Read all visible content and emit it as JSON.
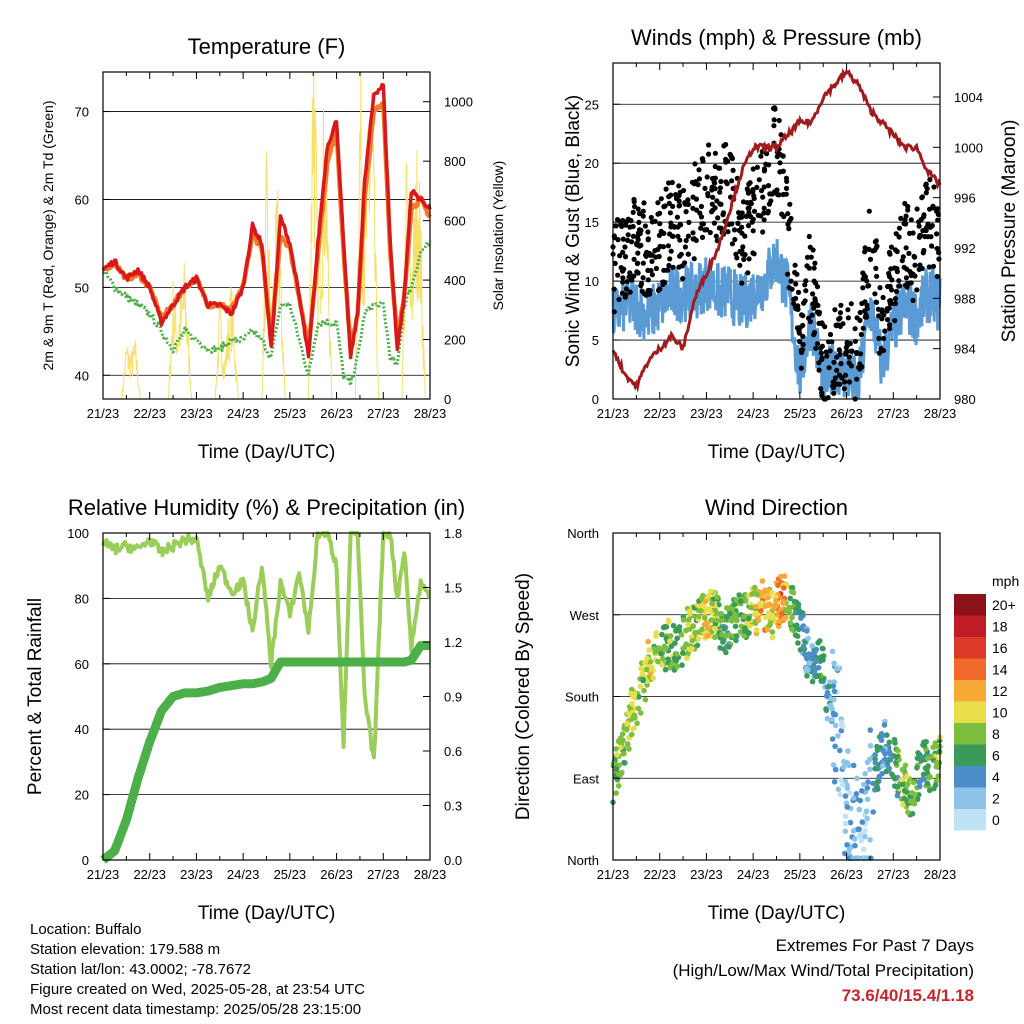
{
  "x_ticks": [
    "21/23",
    "22/23",
    "23/23",
    "24/23",
    "25/23",
    "26/23",
    "27/23",
    "28/23"
  ],
  "x_label": "Time (Day/UTC)",
  "colors": {
    "temp_2m": "#d7191c",
    "temp_9m": "#f07b28",
    "dewpoint": "#4daf4a",
    "insolation": "#f5e06a",
    "gust": "#000000",
    "sonic_wind": "#5b9bd5",
    "pressure": "#a01c1c",
    "rh": "#9acd5a",
    "precip": "#4daf4a"
  },
  "chart_data": [
    {
      "id": "temperature",
      "type": "line",
      "title": "Temperature (F)",
      "xlabel": "Time (Day/UTC)",
      "ylabel": "2m & 9m T (Red, Orange) & 2m Td (Green)",
      "ylabel_right": "Solar Insolation (Yellow)",
      "ylim": [
        37.3,
        74.5
      ],
      "yticks": [
        40,
        50,
        60,
        70
      ],
      "ylim_right": [
        0,
        1100
      ],
      "yticks_right": [
        0,
        200,
        400,
        600,
        800,
        1000
      ],
      "grid": true,
      "x": [
        0,
        0.25,
        0.5,
        0.75,
        1,
        1.25,
        1.5,
        1.75,
        2,
        2.25,
        2.5,
        2.75,
        3,
        3.2,
        3.4,
        3.6,
        3.8,
        4,
        4.2,
        4.4,
        4.6,
        4.8,
        5,
        5.15,
        5.3,
        5.45,
        5.6,
        5.8,
        6,
        6.15,
        6.3,
        6.45,
        6.6,
        6.8,
        7
      ],
      "series": [
        {
          "name": "2m T",
          "values": [
            52,
            53,
            51,
            52,
            50,
            46,
            48,
            50,
            51,
            48,
            48,
            47,
            50,
            57,
            55,
            43,
            58,
            55,
            49,
            42,
            55,
            66,
            69,
            55,
            42,
            47,
            62,
            72,
            73,
            55,
            43,
            49,
            61,
            60,
            59
          ]
        },
        {
          "name": "9m T",
          "values": [
            52,
            52.8,
            51,
            51.5,
            50,
            46.5,
            48,
            50,
            51,
            48,
            48,
            47.5,
            50,
            56,
            54.5,
            44,
            56,
            54.5,
            49,
            43,
            54,
            64,
            68,
            54,
            43,
            47,
            60,
            70,
            71,
            54,
            44,
            49,
            59,
            60,
            58
          ]
        },
        {
          "name": "2m Td",
          "values": [
            52,
            50,
            49,
            48,
            47,
            45,
            43,
            45,
            44,
            43,
            43,
            44,
            44,
            45,
            44,
            42,
            48,
            48,
            44,
            40,
            46,
            46,
            46,
            40,
            39,
            42,
            47,
            48,
            48,
            42,
            41,
            48,
            50,
            54,
            55
          ]
        },
        {
          "name": "Solar Insolation",
          "x": [
            0.4,
            0.5,
            0.6,
            0.7,
            0.8,
            1.4,
            1.5,
            1.6,
            1.75,
            1.9,
            2.4,
            2.5,
            2.6,
            2.75,
            2.9,
            3.4,
            3.5,
            3.6,
            3.75,
            3.9,
            4.4,
            4.5,
            4.6,
            4.75,
            4.9,
            5.4,
            5.5,
            5.6,
            5.75,
            5.9,
            6.4,
            6.5,
            6.6,
            6.75,
            6.9
          ],
          "values": [
            0,
            150,
            120,
            150,
            0,
            0,
            300,
            200,
            350,
            0,
            0,
            250,
            100,
            300,
            0,
            0,
            600,
            250,
            550,
            0,
            0,
            1100,
            400,
            800,
            0,
            0,
            900,
            500,
            900,
            0,
            0,
            650,
            350,
            700,
            0
          ]
        }
      ]
    },
    {
      "id": "winds",
      "type": "line",
      "title": "Winds (mph) & Pressure (mb)",
      "xlabel": "Time (Day/UTC)",
      "ylabel": "Sonic Wind & Gust (Blue, Black)",
      "ylabel_right": "Station Pressure (Maroon)",
      "ylim": [
        0,
        28.5
      ],
      "yticks": [
        0,
        5,
        10,
        15,
        20,
        25
      ],
      "ylim_right": [
        980,
        1006.7
      ],
      "yticks_right": [
        980,
        984,
        988,
        992,
        996,
        1000,
        1004
      ],
      "grid": true,
      "x": [
        0,
        0.25,
        0.5,
        0.75,
        1,
        1.25,
        1.5,
        1.75,
        2,
        2.25,
        2.5,
        2.75,
        3,
        3.25,
        3.5,
        3.75,
        4,
        4.25,
        4.5,
        4.75,
        5,
        5.25,
        5.5,
        5.75,
        6,
        6.25,
        6.5,
        6.75,
        7
      ],
      "series": [
        {
          "name": "Gust",
          "values": [
            11,
            12,
            14,
            12,
            13,
            15,
            14,
            16,
            18,
            17,
            18,
            13,
            16,
            18,
            22,
            14,
            5,
            11,
            2,
            4,
            5,
            3,
            14,
            6,
            10,
            13,
            12,
            15,
            14
          ]
        },
        {
          "name": "Sonic Wind",
          "values": [
            7,
            8,
            8,
            7,
            8,
            9,
            9,
            9,
            10,
            9,
            9,
            8,
            9,
            10,
            12,
            9,
            2,
            7,
            1,
            3,
            2,
            1,
            8,
            3,
            6,
            8,
            7,
            9,
            8
          ]
        },
        {
          "name": "Station Pressure",
          "values": [
            984,
            982,
            981,
            983,
            984,
            985,
            984,
            988,
            990,
            992,
            995,
            998,
            1000,
            1000,
            1000,
            1001,
            1002,
            1002,
            1004,
            1005,
            1006,
            1005,
            1003,
            1002,
            1001,
            1000,
            1000,
            998,
            997
          ]
        }
      ]
    },
    {
      "id": "humidity",
      "type": "line",
      "title": "Relative Humidity (%) & Precipitation (in)",
      "xlabel": "Time (Day/UTC)",
      "ylabel": "Percent & Total Rainfall",
      "ylim": [
        0,
        100
      ],
      "yticks": [
        0,
        20,
        40,
        60,
        80,
        100
      ],
      "yticks_right": [
        "0.0",
        "0.3",
        "0.6",
        "0.9",
        "1.2",
        "1.5",
        "1.8"
      ],
      "grid": true,
      "x": [
        0,
        0.25,
        0.5,
        0.75,
        1,
        1.25,
        1.5,
        1.75,
        2,
        2.25,
        2.5,
        2.75,
        3,
        3.2,
        3.4,
        3.6,
        3.8,
        4,
        4.2,
        4.4,
        4.6,
        4.8,
        5,
        5.15,
        5.3,
        5.45,
        5.6,
        5.8,
        6,
        6.15,
        6.3,
        6.45,
        6.6,
        6.8,
        7
      ],
      "series": [
        {
          "name": "Relative Humidity",
          "values": [
            97,
            95,
            96,
            95,
            98,
            94,
            96,
            98,
            98,
            80,
            90,
            82,
            85,
            70,
            90,
            60,
            85,
            75,
            88,
            70,
            100,
            100,
            90,
            35,
            100,
            100,
            50,
            30,
            100,
            100,
            80,
            95,
            65,
            85,
            80
          ]
        },
        {
          "name": "Total Precipitation",
          "values": [
            0,
            0.05,
            0.22,
            0.45,
            0.65,
            0.82,
            0.9,
            0.92,
            0.92,
            0.93,
            0.95,
            0.96,
            0.97,
            0.97,
            0.98,
            1.0,
            1.09,
            1.09,
            1.09,
            1.09,
            1.09,
            1.09,
            1.09,
            1.09,
            1.09,
            1.09,
            1.09,
            1.09,
            1.09,
            1.09,
            1.09,
            1.09,
            1.1,
            1.18,
            1.18
          ]
        }
      ]
    },
    {
      "id": "direction",
      "type": "scatter",
      "title": "Wind Direction",
      "xlabel": "Time (Day/UTC)",
      "ylabel": "Direction (Colored By Speed)",
      "yticks": [
        "North",
        "East",
        "South",
        "West",
        "North"
      ],
      "ylim": [
        0,
        360
      ],
      "colorbar": {
        "title": "mph",
        "labels": [
          "0",
          "2",
          "4",
          "6",
          "8",
          "10",
          "12",
          "14",
          "16",
          "18",
          "20+"
        ],
        "colors": [
          "#bfe3f5",
          "#8cc4ea",
          "#4b8ec9",
          "#3a9a5a",
          "#7cbf3f",
          "#e9de4a",
          "#f7a937",
          "#ef6a2c",
          "#dc3a26",
          "#bf1e26",
          "#8b1218"
        ]
      },
      "x": [
        0,
        0.2,
        0.4,
        0.6,
        0.8,
        1,
        1.2,
        1.4,
        1.6,
        1.8,
        2,
        2.2,
        2.4,
        2.6,
        2.8,
        3,
        3.2,
        3.4,
        3.6,
        3.8,
        4,
        4.2,
        4.4,
        4.6,
        4.8,
        5,
        5.2,
        5.4,
        5.6,
        5.8,
        6,
        6.2,
        6.4,
        6.6,
        6.8,
        7
      ],
      "values": [
        90,
        120,
        160,
        190,
        220,
        230,
        240,
        230,
        250,
        255,
        270,
        270,
        250,
        260,
        270,
        275,
        280,
        270,
        290,
        280,
        260,
        220,
        230,
        180,
        140,
        60,
        20,
        40,
        90,
        130,
        110,
        80,
        70,
        110,
        100,
        110
      ],
      "speeds": [
        7,
        8,
        9,
        8,
        10,
        7,
        8,
        6,
        9,
        8,
        11,
        8,
        6,
        8,
        7,
        9,
        12,
        10,
        14,
        7,
        5,
        3,
        6,
        4,
        2,
        2,
        3,
        1,
        5,
        4,
        6,
        8,
        7,
        5,
        7,
        8
      ]
    }
  ],
  "info": {
    "location": "Location: Buffalo",
    "elevation": "Station elevation: 179.588 m",
    "latlon": "Station lat/lon: 43.0002; -78.7672",
    "created": "Figure created on Wed, 2025-05-28, at 23:54 UTC",
    "recent": "Most recent data timestamp: 2025/05/28 23:15:00"
  },
  "extremes": {
    "title": "Extremes For Past 7 Days",
    "subtitle": "(High/Low/Max Wind/Total Precipitation)",
    "values": "73.6/40/15.4/1.18"
  }
}
